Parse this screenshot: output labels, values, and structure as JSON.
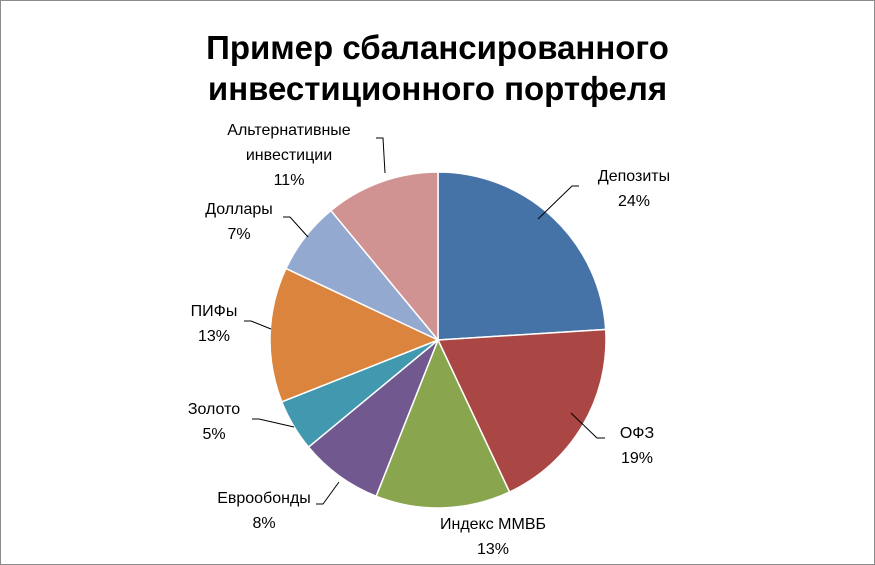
{
  "chart_data": {
    "type": "pie",
    "title_lines": [
      "Пример сбалансированного",
      "инвестиционного портфеля"
    ],
    "slices": [
      {
        "label_lines": [
          "Депозиты"
        ],
        "percent_label": "24%",
        "value": 24,
        "color": "#4572a7"
      },
      {
        "label_lines": [
          "ОФЗ"
        ],
        "percent_label": "19%",
        "value": 19,
        "color": "#aa4643"
      },
      {
        "label_lines": [
          "Индекс ММВБ"
        ],
        "percent_label": "13%",
        "value": 13,
        "color": "#89a54e"
      },
      {
        "label_lines": [
          "Еврообонды"
        ],
        "percent_label": "8%",
        "value": 8,
        "color": "#71588f"
      },
      {
        "label_lines": [
          "Золото"
        ],
        "percent_label": "5%",
        "value": 5,
        "color": "#4198af"
      },
      {
        "label_lines": [
          "ПИФы"
        ],
        "percent_label": "13%",
        "value": 13,
        "color": "#db843d"
      },
      {
        "label_lines": [
          "Доллары"
        ],
        "percent_label": "7%",
        "value": 7,
        "color": "#93a9cf"
      },
      {
        "label_lines": [
          "Альтернативные",
          "инвестиции"
        ],
        "percent_label": "11%",
        "value": 11,
        "color": "#d19392"
      }
    ]
  }
}
